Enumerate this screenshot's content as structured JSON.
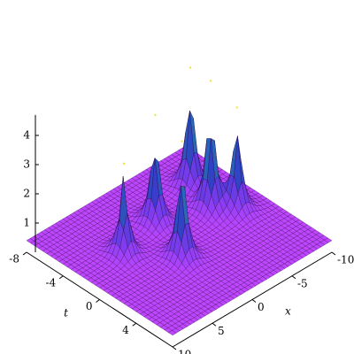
{
  "chart_data": {
    "type": "surface3d",
    "x_label": "x",
    "y_label": "t",
    "xlim": [
      -10,
      10
    ],
    "xticks": [
      -10,
      -5,
      0,
      5,
      10
    ],
    "ylim": [
      -8,
      8
    ],
    "yticks": [
      -8,
      -4,
      0,
      4
    ],
    "zlim": [
      0,
      4.7
    ],
    "zticks": [
      1,
      2,
      3,
      4
    ],
    "surface_level": 0.4,
    "peaks": [
      {
        "x": 5,
        "t": -1.7,
        "z": 3.5
      },
      {
        "x": -0.2,
        "t": -2.8,
        "z": 4.1
      },
      {
        "x": 1.6,
        "t": 1.7,
        "z": 4.4
      },
      {
        "x": -6.1,
        "t": -4.1,
        "z": 4.5
      },
      {
        "x": -5.2,
        "t": -1.1,
        "z": 4.8
      },
      {
        "x": -6.9,
        "t": 0.3,
        "z": 3.9
      }
    ]
  }
}
